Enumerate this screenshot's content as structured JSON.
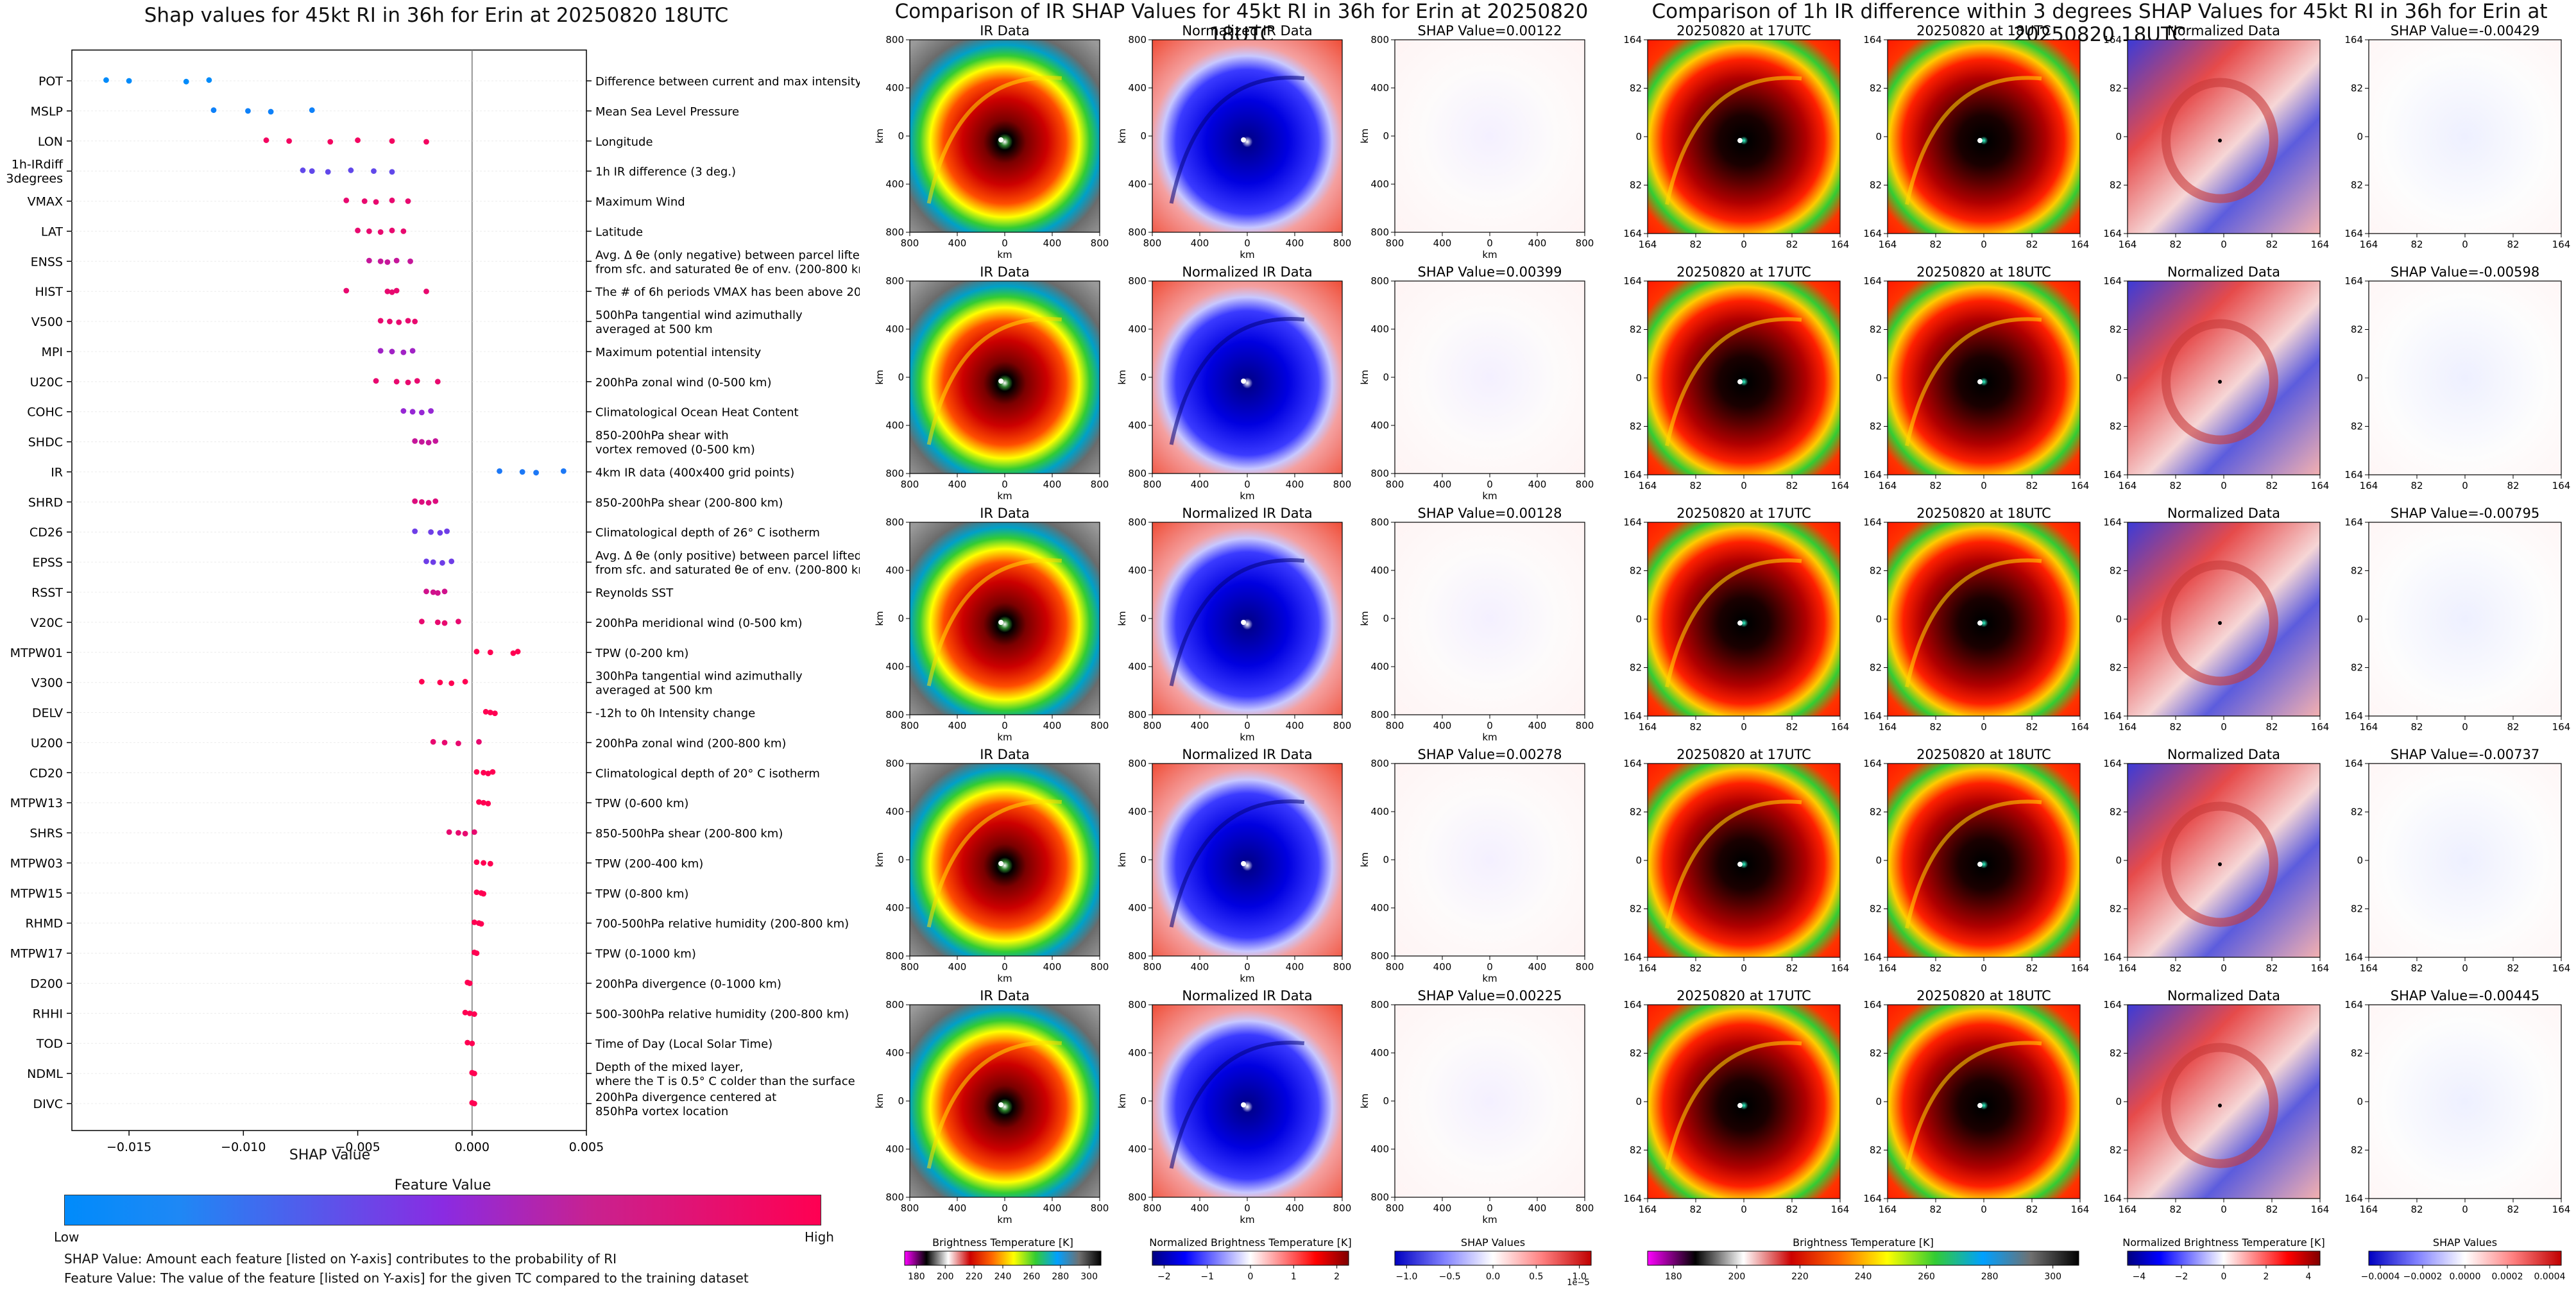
{
  "shap_panel": {
    "title": "Shap values for 45kt RI in 36h for Erin at 20250820 18UTC",
    "xlabel": "SHAP Value",
    "colorbar_title": "Feature Value",
    "colorbar_low": "Low",
    "colorbar_high": "High",
    "note_shap": "SHAP Value: Amount each feature [listed on Y-axis] contributes to the probability of RI",
    "note_feature": "Feature Value: The value of the feature [listed on Y-axis] for the given TC compared to the training dataset"
  },
  "ir_panel": {
    "title": "Comparison of IR SHAP Values for 45kt RI in 36h for Erin at 20250820 18UTC",
    "col_titles": [
      "IR Data",
      "Normalized IR Data"
    ],
    "shap_titles": [
      "SHAP Value=0.00122",
      "SHAP Value=0.00399",
      "SHAP Value=0.00128",
      "SHAP Value=0.00278",
      "SHAP Value=0.00225"
    ],
    "axis_unit": "km",
    "ticks": [
      "800",
      "400",
      "0",
      "400",
      "800"
    ],
    "cb_labels": [
      "Brightness Temperature [K]",
      "Normalized Brightness Temperature [K]",
      "SHAP Values"
    ],
    "cb_ticks_bt": [
      "180",
      "200",
      "220",
      "240",
      "260",
      "280",
      "300"
    ],
    "cb_ticks_norm": [
      "−2",
      "−1",
      "0",
      "1",
      "2"
    ],
    "cb_ticks_shap": [
      "−1.0",
      "−0.5",
      "0.0",
      "0.5",
      "1.0"
    ],
    "cb_shap_exp": "1e−5"
  },
  "diff_panel": {
    "title": "Comparison of 1h IR difference within 3 degrees SHAP Values for 45kt RI in 36h for Erin at 20250820 18UTC",
    "col_titles": [
      "20250820 at 17UTC",
      "20250820 at 18UTC",
      "Normalized Data"
    ],
    "shap_titles": [
      "SHAP Value=-0.00429",
      "SHAP Value=-0.00598",
      "SHAP Value=-0.00795",
      "SHAP Value=-0.00737",
      "SHAP Value=-0.00445"
    ],
    "ticks": [
      "164",
      "82",
      "0",
      "82",
      "164"
    ],
    "cb_labels": [
      "Brightness Temperature [K]",
      "Normalized Brightness Temperature [K]",
      "SHAP Values"
    ],
    "cb_ticks_bt": [
      "180",
      "200",
      "220",
      "240",
      "260",
      "280",
      "300"
    ],
    "cb_ticks_norm": [
      "−4",
      "−2",
      "0",
      "2",
      "4"
    ],
    "cb_ticks_shap": [
      "−0.0004",
      "−0.0002",
      "0.0000",
      "0.0002",
      "0.0004"
    ]
  },
  "colors": {
    "low": "#008bfb",
    "mid": "#8a2be2",
    "high": "#ff0052"
  },
  "chart_data": {
    "type": "scatter",
    "title": "Shap values for 45kt RI in 36h for Erin at 20250820 18UTC",
    "xlabel": "SHAP Value",
    "xlim": [
      -0.0175,
      0.005
    ],
    "xticks": [
      "−0.015",
      "−0.010",
      "−0.005",
      "0.000",
      "0.005"
    ],
    "xtick_values": [
      -0.015,
      -0.01,
      -0.005,
      0.0,
      0.005
    ],
    "features": [
      {
        "name": "POT",
        "desc": "Difference between current and max intensity",
        "points": [
          -0.016,
          -0.015,
          -0.0125,
          -0.0115
        ],
        "color": 0.0
      },
      {
        "name": "MSLP",
        "desc": "Mean Sea Level Pressure",
        "points": [
          -0.0113,
          -0.0098,
          -0.0088,
          -0.007
        ],
        "color": 0.05
      },
      {
        "name": "LON",
        "desc": "Longitude",
        "points": [
          -0.009,
          -0.008,
          -0.0062,
          -0.005,
          -0.0035,
          -0.002
        ],
        "color": 0.95
      },
      {
        "name": "1h-IRdiff\n3degrees",
        "desc": "1h IR difference (3 deg.)",
        "points": [
          -0.0074,
          -0.007,
          -0.0063,
          -0.0053,
          -0.0043,
          -0.0035
        ],
        "color": 0.35
      },
      {
        "name": "VMAX",
        "desc": "Maximum Wind",
        "points": [
          -0.0055,
          -0.0047,
          -0.0042,
          -0.0035,
          -0.0028
        ],
        "color": 0.9
      },
      {
        "name": "LAT",
        "desc": "Latitude",
        "points": [
          -0.005,
          -0.0045,
          -0.004,
          -0.0035,
          -0.003
        ],
        "color": 0.9
      },
      {
        "name": "ENSS",
        "desc": "Avg. Δ θe (only negative) between parcel lifted\nfrom sfc. and saturated θe of env. (200-800 km)",
        "points": [
          -0.0045,
          -0.004,
          -0.0037,
          -0.0033,
          -0.0027
        ],
        "color": 0.75
      },
      {
        "name": "HIST",
        "desc": "The # of 6h periods VMAX has been above 20kt",
        "points": [
          -0.0055,
          -0.0037,
          -0.0035,
          -0.0033,
          -0.002
        ],
        "color": 0.9
      },
      {
        "name": "V500",
        "desc": "500hPa tangential wind azimuthally\naveraged at 500 km",
        "points": [
          -0.004,
          -0.0036,
          -0.0032,
          -0.0028,
          -0.0025
        ],
        "color": 0.9
      },
      {
        "name": "MPI",
        "desc": "Maximum potential intensity",
        "points": [
          -0.004,
          -0.0035,
          -0.003,
          -0.0026
        ],
        "color": 0.6
      },
      {
        "name": "U20C",
        "desc": "200hPa zonal wind (0-500 km)",
        "points": [
          -0.0042,
          -0.0033,
          -0.0028,
          -0.0024,
          -0.0015
        ],
        "color": 0.9
      },
      {
        "name": "COHC",
        "desc": "Climatological Ocean Heat Content",
        "points": [
          -0.003,
          -0.0026,
          -0.0022,
          -0.0018
        ],
        "color": 0.55
      },
      {
        "name": "SHDC",
        "desc": "850-200hPa shear with\nvortex removed (0-500 km)",
        "points": [
          -0.0025,
          -0.0022,
          -0.0019,
          -0.0016
        ],
        "color": 0.75
      },
      {
        "name": "IR",
        "desc": "4km IR data (400x400 grid points)",
        "points": [
          0.0012,
          0.0022,
          0.0028,
          0.004
        ],
        "color": 0.1
      },
      {
        "name": "SHRD",
        "desc": "850-200hPa shear (200-800 km)",
        "points": [
          -0.0025,
          -0.0022,
          -0.0019,
          -0.0016
        ],
        "color": 0.85
      },
      {
        "name": "CD26",
        "desc": "Climatological depth of 26° C isotherm",
        "points": [
          -0.0025,
          -0.0018,
          -0.0014,
          -0.0011
        ],
        "color": 0.4
      },
      {
        "name": "EPSS",
        "desc": "Avg. Δ θe (only positive) between parcel lifted\nfrom sfc. and saturated θe of env. (200-800 km)",
        "points": [
          -0.002,
          -0.0017,
          -0.0013,
          -0.0009
        ],
        "color": 0.4
      },
      {
        "name": "RSST",
        "desc": "Reynolds SST",
        "points": [
          -0.002,
          -0.0017,
          -0.0015,
          -0.0012
        ],
        "color": 0.8
      },
      {
        "name": "V20C",
        "desc": "200hPa meridional wind (0-500 km)",
        "points": [
          -0.0022,
          -0.0015,
          -0.0012,
          -0.0006
        ],
        "color": 0.9
      },
      {
        "name": "MTPW01",
        "desc": "TPW (0-200 km)",
        "points": [
          0.0002,
          0.0008,
          0.0018,
          0.002
        ],
        "color": 1.0
      },
      {
        "name": "V300",
        "desc": "300hPa tangential wind azimuthally\naveraged at 500 km",
        "points": [
          -0.0022,
          -0.0014,
          -0.0009,
          -0.0003
        ],
        "color": 1.0
      },
      {
        "name": "DELV",
        "desc": "-12h to 0h Intensity change",
        "points": [
          0.0006,
          0.0008,
          0.001
        ],
        "color": 1.0
      },
      {
        "name": "U200",
        "desc": "200hPa zonal wind (200-800 km)",
        "points": [
          -0.0017,
          -0.0012,
          -0.0006,
          0.0003
        ],
        "color": 0.9
      },
      {
        "name": "CD20",
        "desc": "Climatological depth of 20° C isotherm",
        "points": [
          0.0002,
          0.0005,
          0.0007,
          0.0009
        ],
        "color": 1.0
      },
      {
        "name": "MTPW13",
        "desc": "TPW (0-600 km)",
        "points": [
          0.0003,
          0.0005,
          0.0007
        ],
        "color": 1.0
      },
      {
        "name": "SHRS",
        "desc": "850-500hPa shear (200-800 km)",
        "points": [
          -0.001,
          -0.0006,
          -0.0003,
          0.0001
        ],
        "color": 0.9
      },
      {
        "name": "MTPW03",
        "desc": "TPW (200-400 km)",
        "points": [
          0.0002,
          0.0005,
          0.0008
        ],
        "color": 1.0
      },
      {
        "name": "MTPW15",
        "desc": "TPW (0-800 km)",
        "points": [
          0.0002,
          0.0004,
          0.0005
        ],
        "color": 1.0
      },
      {
        "name": "RHMD",
        "desc": "700-500hPa relative humidity (200-800 km)",
        "points": [
          0.0001,
          0.0003,
          0.0004
        ],
        "color": 1.0
      },
      {
        "name": "MTPW17",
        "desc": "TPW (0-1000 km)",
        "points": [
          0.0001,
          0.0002
        ],
        "color": 1.0
      },
      {
        "name": "D200",
        "desc": "200hPa divergence (0-1000 km)",
        "points": [
          -0.0002,
          -0.0001
        ],
        "color": 1.0
      },
      {
        "name": "RHHI",
        "desc": "500-300hPa relative humidity (200-800 km)",
        "points": [
          -0.0003,
          -0.0001,
          0.0001
        ],
        "color": 1.0
      },
      {
        "name": "TOD",
        "desc": "Time of Day (Local Solar Time)",
        "points": [
          -0.0002,
          0.0
        ],
        "color": 1.0
      },
      {
        "name": "NDML",
        "desc": "Depth of the mixed layer,\nwhere the T is 0.5° C colder than the surface",
        "points": [
          0.0,
          0.0001
        ],
        "color": 1.0
      },
      {
        "name": "DIVC",
        "desc": "200hPa divergence centered at\n850hPa vortex location",
        "points": [
          0.0,
          0.0001
        ],
        "color": 1.0
      }
    ]
  }
}
